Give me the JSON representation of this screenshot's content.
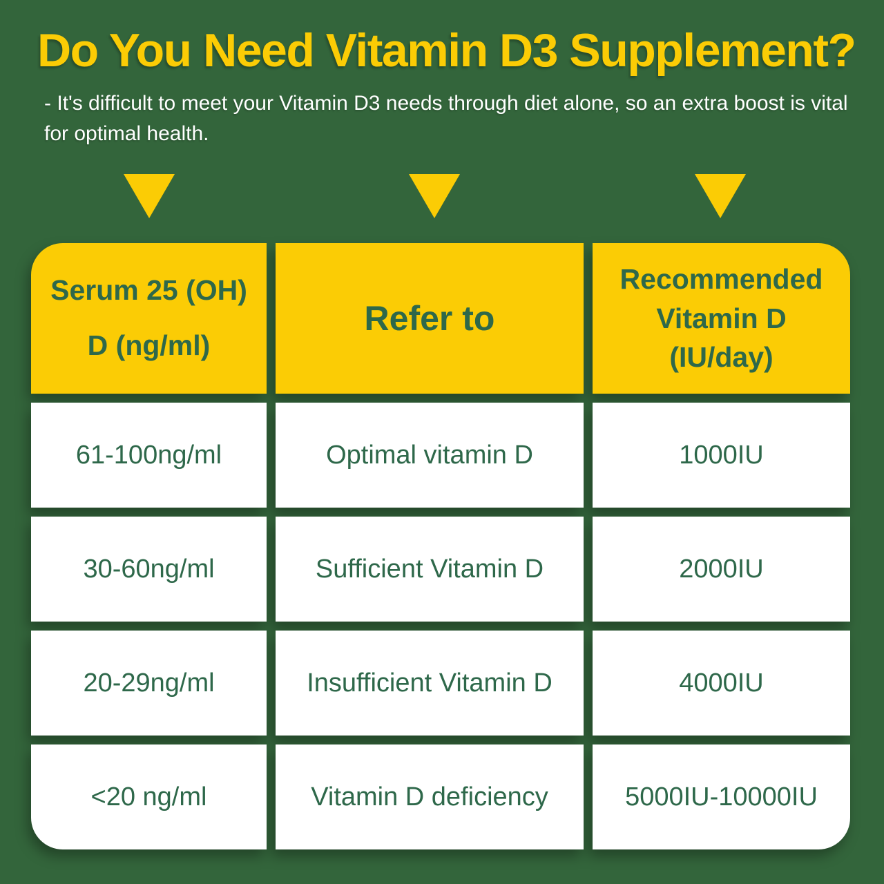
{
  "header": {
    "title": "Do You Need Vitamin D3 Supplement?",
    "subtitle": "- It's difficult to meet your Vitamin D3 needs through diet alone, so an extra boost is vital for optimal health."
  },
  "arrows": {
    "icon": "down-triangle",
    "count": 3
  },
  "chart_data": {
    "type": "table",
    "title": "Do You Need Vitamin D3 Supplement?",
    "columns": [
      "Serum 25 (OH) D (ng/ml)",
      "Refer to",
      "Recommended Vitamin D (IU/day)"
    ],
    "rows": [
      [
        "61-100ng/ml",
        "Optimal vitamin D",
        "1000IU"
      ],
      [
        "30-60ng/ml",
        "Sufficient Vitamin D",
        "2000IU"
      ],
      [
        "20-29ng/ml",
        "Insufficient Vitamin D",
        "4000IU"
      ],
      [
        "<20 ng/ml",
        "Vitamin D deficiency",
        "5000IU-10000IU"
      ]
    ]
  },
  "colors": {
    "background_green": "#33653B",
    "accent_yellow": "#FBCC05",
    "text_green": "#2E684A",
    "cell_white": "#FFFFFF",
    "subtitle_white": "#FFFFFF"
  }
}
